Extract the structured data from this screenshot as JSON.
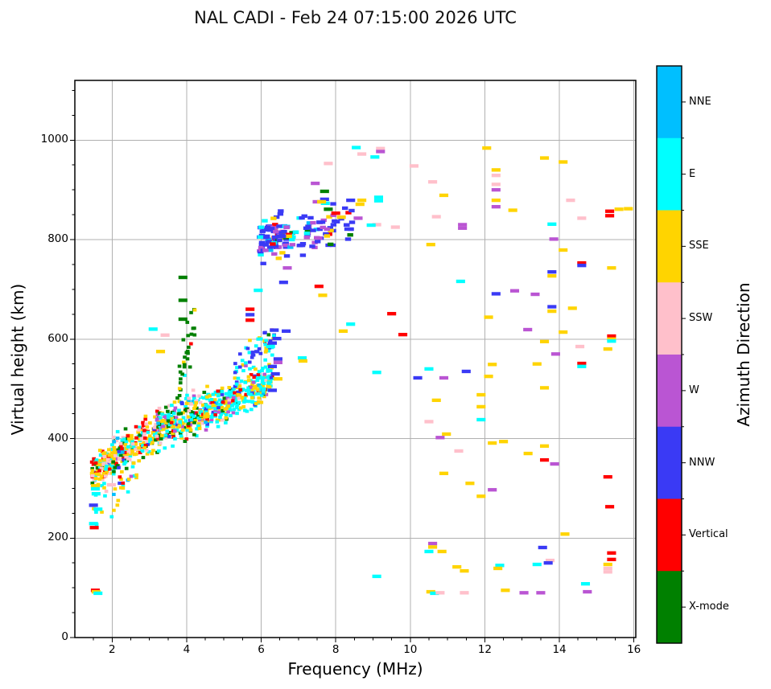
{
  "title": "NAL CADI - Feb 24 07:15:00 2026 UTC",
  "chart_data": {
    "type": "scatter",
    "title": "NAL CADI - Feb 24 07:15:00 2026 UTC",
    "xlabel": "Frequency (MHz)",
    "ylabel": "Virtual height (km)",
    "xlim": [
      1.0,
      16.05
    ],
    "ylim": [
      0,
      1120
    ],
    "x_major_ticks": [
      2,
      4,
      6,
      8,
      10,
      12,
      14,
      16
    ],
    "x_minor_step": 0.5,
    "y_major_ticks": [
      0,
      200,
      400,
      600,
      800,
      1000
    ],
    "y_minor_step": 50,
    "grid": true,
    "grid_color": "#b0b0b0",
    "spine_color": "#000000",
    "colorbar": {
      "label": "Azimuth Direction",
      "categories": [
        {
          "name": "NNE",
          "color": "#00bfff"
        },
        {
          "name": "E",
          "color": "#00ffff"
        },
        {
          "name": "SSE",
          "color": "#ffd400"
        },
        {
          "name": "SSW",
          "color": "#ffc0cb"
        },
        {
          "name": "W",
          "color": "#ba55d3"
        },
        {
          "name": "NNW",
          "color": "#3a3af5"
        },
        {
          "name": "Vertical",
          "color": "#ff0000"
        },
        {
          "name": "X-mode",
          "color": "#008000"
        }
      ]
    },
    "seed": 42,
    "dash_size": [
      0.24,
      7
    ],
    "points": [
      [
        1.55,
        305,
        2
      ],
      [
        1.55,
        299,
        1
      ],
      [
        1.57,
        289,
        1
      ],
      [
        1.5,
        266,
        5
      ],
      [
        1.5,
        229,
        1
      ],
      [
        1.52,
        221,
        6
      ],
      [
        1.98,
        307,
        3
      ],
      [
        1.62,
        258,
        1
      ],
      [
        1.55,
        95,
        6
      ],
      [
        1.57,
        92,
        2
      ],
      [
        1.62,
        89,
        1
      ],
      [
        3.9,
        724,
        7
      ],
      [
        3.9,
        678,
        7
      ],
      [
        3.9,
        640,
        7
      ],
      [
        3.42,
        608,
        3
      ],
      [
        3.3,
        575,
        2
      ],
      [
        3.1,
        620,
        1
      ],
      [
        5.7,
        660,
        6
      ],
      [
        5.7,
        649,
        5
      ],
      [
        5.7,
        638,
        6
      ],
      [
        5.92,
        698,
        1
      ],
      [
        6.7,
        743,
        4
      ],
      [
        6.6,
        714,
        5
      ],
      [
        6.67,
        616,
        5
      ],
      [
        6.35,
        618,
        5
      ],
      [
        6.42,
        601,
        5
      ],
      [
        6.3,
        592,
        5
      ],
      [
        6.45,
        560,
        5
      ],
      [
        6.3,
        545,
        5
      ],
      [
        6.38,
        530,
        5
      ],
      [
        6.45,
        520,
        2
      ],
      [
        6.3,
        497,
        5
      ],
      [
        6.25,
        585,
        1
      ],
      [
        6.45,
        553,
        4
      ],
      [
        7.1,
        562,
        1
      ],
      [
        7.12,
        556,
        2
      ],
      [
        8.55,
        985,
        1
      ],
      [
        8.7,
        972,
        3
      ],
      [
        9.05,
        966,
        1
      ],
      [
        7.8,
        953,
        3
      ],
      [
        7.45,
        913,
        4
      ],
      [
        7.7,
        897,
        7
      ],
      [
        7.7,
        881,
        5
      ],
      [
        7.72,
        873,
        1
      ],
      [
        8.4,
        879,
        5
      ],
      [
        8.7,
        879,
        2
      ],
      [
        9.15,
        885,
        1
      ],
      [
        9.15,
        878,
        1
      ],
      [
        7.5,
        876,
        4
      ],
      [
        7.62,
        876,
        2
      ],
      [
        7.8,
        861,
        7
      ],
      [
        8.0,
        853,
        6
      ],
      [
        8.65,
        871,
        2
      ],
      [
        8.6,
        843,
        4
      ],
      [
        9.1,
        830,
        3
      ],
      [
        9.6,
        825,
        3
      ],
      [
        8.95,
        829,
        1
      ],
      [
        8.15,
        845,
        2
      ],
      [
        8.35,
        821,
        5
      ],
      [
        7.6,
        835,
        5
      ],
      [
        7.55,
        706,
        6
      ],
      [
        7.65,
        688,
        2
      ],
      [
        8.2,
        616,
        2
      ],
      [
        8.4,
        630,
        1
      ],
      [
        9.5,
        651,
        6
      ],
      [
        9.8,
        609,
        6
      ],
      [
        12.05,
        984,
        2
      ],
      [
        9.2,
        983,
        3
      ],
      [
        9.2,
        977,
        4
      ],
      [
        13.6,
        964,
        2
      ],
      [
        14.1,
        956,
        2
      ],
      [
        10.1,
        948,
        3
      ],
      [
        12.3,
        940,
        2
      ],
      [
        12.3,
        929,
        3
      ],
      [
        10.6,
        916,
        3
      ],
      [
        12.3,
        911,
        3
      ],
      [
        12.3,
        900,
        4
      ],
      [
        10.9,
        889,
        2
      ],
      [
        12.3,
        879,
        2
      ],
      [
        12.3,
        866,
        4
      ],
      [
        12.75,
        859,
        2
      ],
      [
        14.3,
        879,
        3
      ],
      [
        15.35,
        857,
        6
      ],
      [
        15.35,
        848,
        6
      ],
      [
        15.6,
        861,
        2
      ],
      [
        15.85,
        862,
        2
      ],
      [
        14.6,
        843,
        3
      ],
      [
        13.8,
        831,
        1
      ],
      [
        13.85,
        801,
        4
      ],
      [
        11.4,
        830,
        4
      ],
      [
        11.4,
        823,
        4
      ],
      [
        10.7,
        846,
        3
      ],
      [
        10.55,
        790,
        2
      ],
      [
        11.35,
        716,
        1
      ],
      [
        14.1,
        779,
        2
      ],
      [
        14.6,
        753,
        6
      ],
      [
        14.6,
        748,
        5
      ],
      [
        15.4,
        743,
        2
      ],
      [
        13.8,
        735,
        5
      ],
      [
        13.8,
        727,
        2
      ],
      [
        12.1,
        644,
        2
      ],
      [
        12.8,
        697,
        4
      ],
      [
        12.3,
        691,
        5
      ],
      [
        13.35,
        690,
        4
      ],
      [
        14.35,
        662,
        2
      ],
      [
        13.8,
        665,
        5
      ],
      [
        13.8,
        656,
        2
      ],
      [
        14.1,
        614,
        2
      ],
      [
        15.4,
        606,
        6
      ],
      [
        15.4,
        600,
        2
      ],
      [
        15.4,
        596,
        1
      ],
      [
        14.55,
        585,
        3
      ],
      [
        13.9,
        570,
        4
      ],
      [
        15.3,
        580,
        2
      ],
      [
        14.6,
        551,
        6
      ],
      [
        14.6,
        545,
        1
      ],
      [
        13.15,
        619,
        4
      ],
      [
        12.2,
        549,
        2
      ],
      [
        13.6,
        595,
        2
      ],
      [
        13.4,
        550,
        2
      ],
      [
        10.5,
        540,
        1
      ],
      [
        11.5,
        535,
        5
      ],
      [
        10.2,
        522,
        5
      ],
      [
        10.9,
        522,
        4
      ],
      [
        12.1,
        525,
        2
      ],
      [
        13.6,
        502,
        2
      ],
      [
        10.7,
        477,
        2
      ],
      [
        11.9,
        464,
        2
      ],
      [
        11.9,
        488,
        2
      ],
      [
        10.5,
        434,
        3
      ],
      [
        11.9,
        438,
        1
      ],
      [
        10.97,
        409,
        2
      ],
      [
        10.8,
        402,
        4
      ],
      [
        11.3,
        375,
        3
      ],
      [
        12.2,
        391,
        2
      ],
      [
        12.5,
        394,
        2
      ],
      [
        13.6,
        385,
        2
      ],
      [
        13.16,
        370,
        2
      ],
      [
        13.6,
        357,
        6
      ],
      [
        13.87,
        349,
        4
      ],
      [
        9.1,
        533,
        1
      ],
      [
        15.3,
        323,
        6
      ],
      [
        15.35,
        263,
        6
      ],
      [
        11.6,
        310,
        2
      ],
      [
        11.9,
        284,
        2
      ],
      [
        12.2,
        297,
        4
      ],
      [
        10.9,
        330,
        2
      ],
      [
        14.15,
        208,
        2
      ],
      [
        10.6,
        189,
        4
      ],
      [
        10.6,
        182,
        2
      ],
      [
        10.5,
        173,
        1
      ],
      [
        10.85,
        173,
        2
      ],
      [
        11.25,
        142,
        2
      ],
      [
        11.45,
        134,
        2
      ],
      [
        13.4,
        147,
        1
      ],
      [
        12.4,
        145,
        1
      ],
      [
        12.35,
        139,
        2
      ],
      [
        13.75,
        155,
        3
      ],
      [
        13.7,
        150,
        5
      ],
      [
        15.4,
        170,
        6
      ],
      [
        15.4,
        157,
        6
      ],
      [
        15.3,
        147,
        2
      ],
      [
        15.3,
        139,
        3
      ],
      [
        15.3,
        132,
        3
      ],
      [
        14.7,
        108,
        1
      ],
      [
        14.75,
        92,
        4
      ],
      [
        13.55,
        181,
        5
      ],
      [
        10.55,
        92,
        2
      ],
      [
        10.65,
        89,
        1
      ],
      [
        10.8,
        90,
        3
      ],
      [
        11.45,
        90,
        3
      ],
      [
        12.55,
        95,
        2
      ],
      [
        13.05,
        90,
        4
      ],
      [
        13.5,
        90,
        4
      ],
      [
        9.1,
        123,
        1
      ]
    ],
    "clusters": [
      {
        "f0": 1.45,
        "f1": 2.1,
        "h0": 330,
        "h1": 360,
        "spread": 30,
        "count": 150,
        "cell": [
          0.1,
          6.5
        ],
        "weights": [
          0.02,
          0.2,
          0.34,
          0.18,
          0.02,
          0.03,
          0.16,
          0.05
        ]
      },
      {
        "f0": 2.0,
        "f1": 3.3,
        "h0": 365,
        "h1": 415,
        "spread": 35,
        "count": 230,
        "cell": [
          0.1,
          6.5
        ],
        "weights": [
          0.02,
          0.2,
          0.32,
          0.2,
          0.03,
          0.03,
          0.1,
          0.1
        ]
      },
      {
        "f0": 3.2,
        "f1": 4.6,
        "h0": 420,
        "h1": 460,
        "spread": 40,
        "count": 260,
        "cell": [
          0.1,
          6.5
        ],
        "weights": [
          0.02,
          0.28,
          0.3,
          0.08,
          0.04,
          0.05,
          0.08,
          0.15
        ]
      },
      {
        "f0": 4.5,
        "f1": 6.3,
        "h0": 455,
        "h1": 515,
        "spread": 38,
        "count": 300,
        "cell": [
          0.1,
          6.5
        ],
        "weights": [
          0.02,
          0.5,
          0.28,
          0.03,
          0.04,
          0.08,
          0.03,
          0.02
        ]
      },
      {
        "f0": 5.3,
        "f1": 6.35,
        "h0": 545,
        "h1": 600,
        "spread": 28,
        "count": 55,
        "cell": [
          0.1,
          6.5
        ],
        "weights": [
          0.02,
          0.35,
          0.2,
          0.02,
          0.08,
          0.3,
          0.02,
          0.01
        ]
      },
      {
        "f0": 3.75,
        "f1": 4.25,
        "h0": 480,
        "h1": 660,
        "spread": 60,
        "count": 30,
        "cell": [
          0.1,
          6.5
        ],
        "weights": [
          0.0,
          0.05,
          0.1,
          0.0,
          0.02,
          0.03,
          0.05,
          0.75
        ]
      },
      {
        "f0": 1.5,
        "f1": 2.7,
        "h0": 250,
        "h1": 330,
        "spread": 35,
        "count": 30,
        "cell": [
          0.1,
          6.5
        ],
        "weights": [
          0.05,
          0.35,
          0.3,
          0.08,
          0.05,
          0.07,
          0.1,
          0.0
        ]
      },
      {
        "f0": 5.95,
        "f1": 6.7,
        "h0": 800,
        "h1": 810,
        "spread": 42,
        "count": 90,
        "cell": [
          0.16,
          7
        ],
        "weights": [
          0.02,
          0.06,
          0.06,
          0.02,
          0.14,
          0.58,
          0.07,
          0.05
        ]
      },
      {
        "f0": 6.6,
        "f1": 8.45,
        "h0": 800,
        "h1": 835,
        "spread": 40,
        "count": 75,
        "cell": [
          0.16,
          7
        ],
        "weights": [
          0.03,
          0.08,
          0.1,
          0.03,
          0.14,
          0.48,
          0.08,
          0.06
        ]
      }
    ]
  }
}
